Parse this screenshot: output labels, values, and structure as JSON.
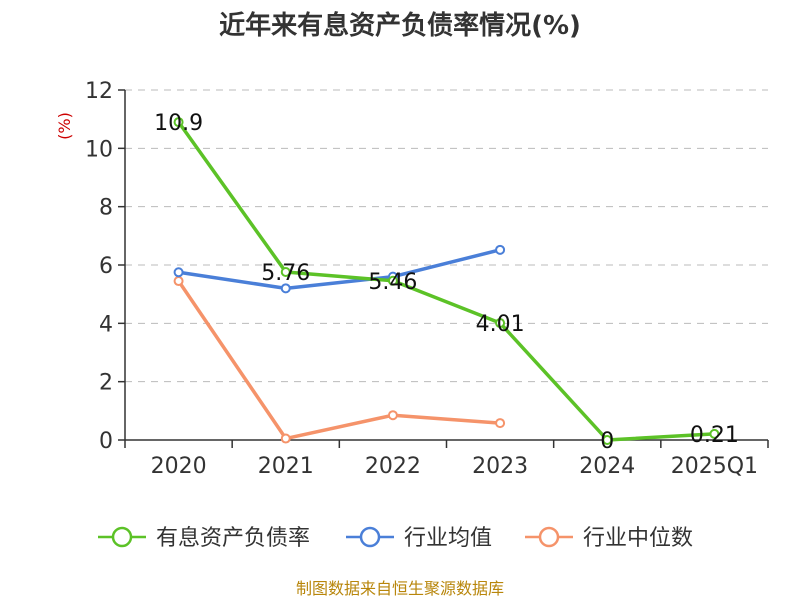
{
  "chart_data": {
    "type": "line",
    "title": "近年来有息资产负债率情况(%)",
    "ylabel": "(%)",
    "categories": [
      "2020",
      "2021",
      "2022",
      "2023",
      "2024",
      "2025Q1"
    ],
    "ylim": [
      0,
      12
    ],
    "yticks": [
      0,
      2,
      4,
      6,
      8,
      10,
      12
    ],
    "grid": true,
    "legend_position": "bottom",
    "series": [
      {
        "name": "有息资产负债率",
        "color": "#5cc227",
        "values": [
          10.9,
          5.76,
          5.46,
          4.01,
          0,
          0.21
        ],
        "labels": [
          "10.9",
          "5.76",
          "5.46",
          "4.01",
          "0",
          "0.21"
        ]
      },
      {
        "name": "行业均值",
        "color": "#4a7fd8",
        "values": [
          5.75,
          5.2,
          5.6,
          6.52,
          null,
          null
        ]
      },
      {
        "name": "行业中位数",
        "color": "#f5936a",
        "values": [
          5.45,
          0.05,
          0.85,
          0.58,
          null,
          null
        ]
      }
    ],
    "source": "制图数据来自恒生聚源数据库"
  }
}
